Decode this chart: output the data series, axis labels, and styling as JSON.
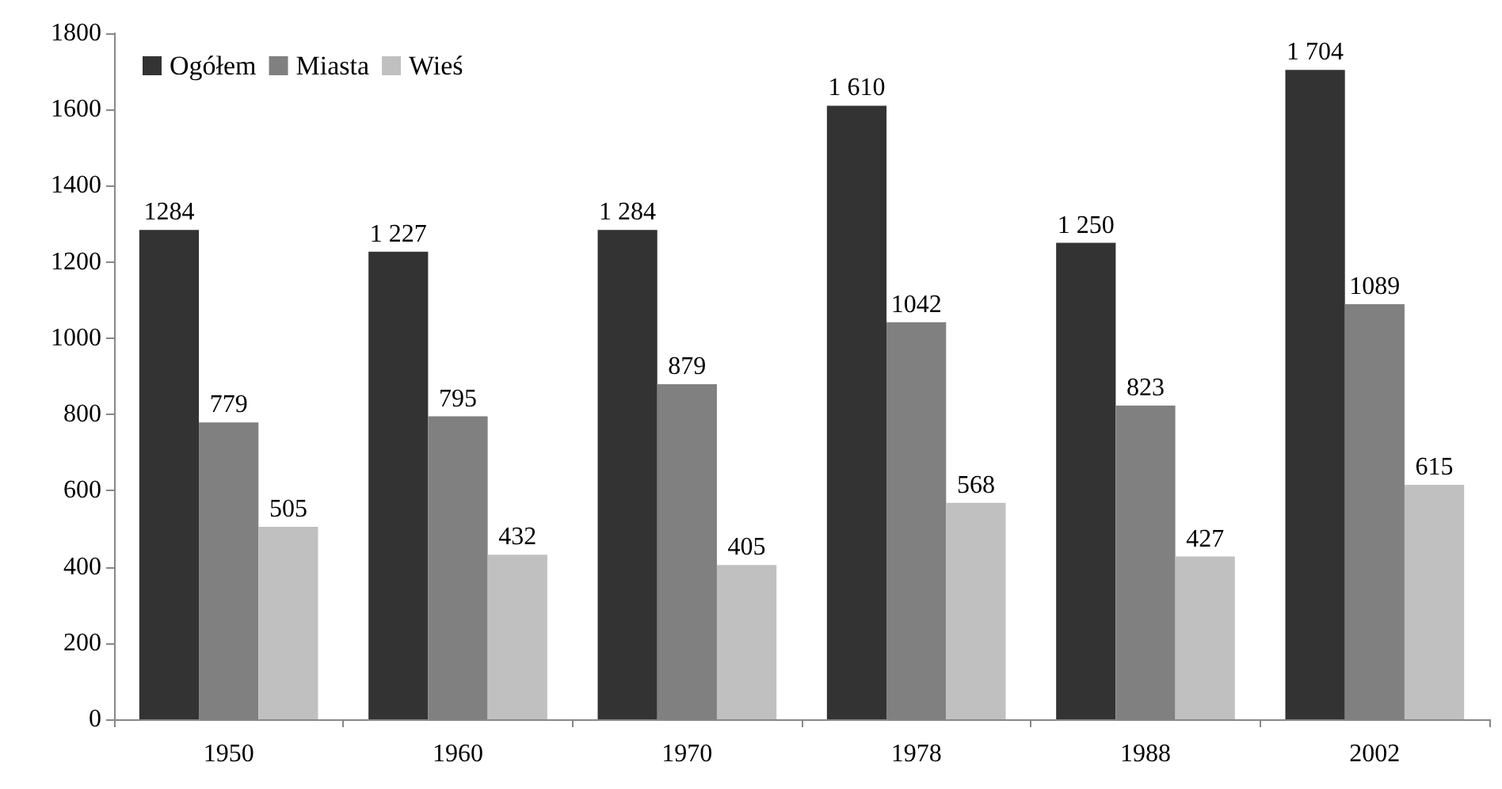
{
  "chart_data": {
    "type": "bar",
    "categories": [
      "1950",
      "1960",
      "1970",
      "1978",
      "1988",
      "2002"
    ],
    "series": [
      {
        "name": "Ogółem",
        "color": "#333333",
        "values": [
          1284,
          1227,
          1284,
          1610,
          1250,
          1704
        ],
        "value_labels": [
          "1284",
          "1 227",
          "1 284",
          "1 610",
          "1 250",
          "1 704"
        ]
      },
      {
        "name": "Miasta",
        "color": "#808080",
        "values": [
          779,
          795,
          879,
          1042,
          823,
          1089
        ],
        "value_labels": [
          "779",
          "795",
          "879",
          "1042",
          "823",
          "1089"
        ]
      },
      {
        "name": "Wieś",
        "color": "#c0c0c0",
        "values": [
          505,
          432,
          405,
          568,
          427,
          615
        ],
        "value_labels": [
          "505",
          "432",
          "405",
          "568",
          "427",
          "615"
        ]
      }
    ],
    "ylim": [
      0,
      1800
    ],
    "yticks": [
      0,
      200,
      400,
      600,
      800,
      1000,
      1200,
      1400,
      1600,
      1800
    ],
    "grid": false,
    "legend": "top left"
  }
}
